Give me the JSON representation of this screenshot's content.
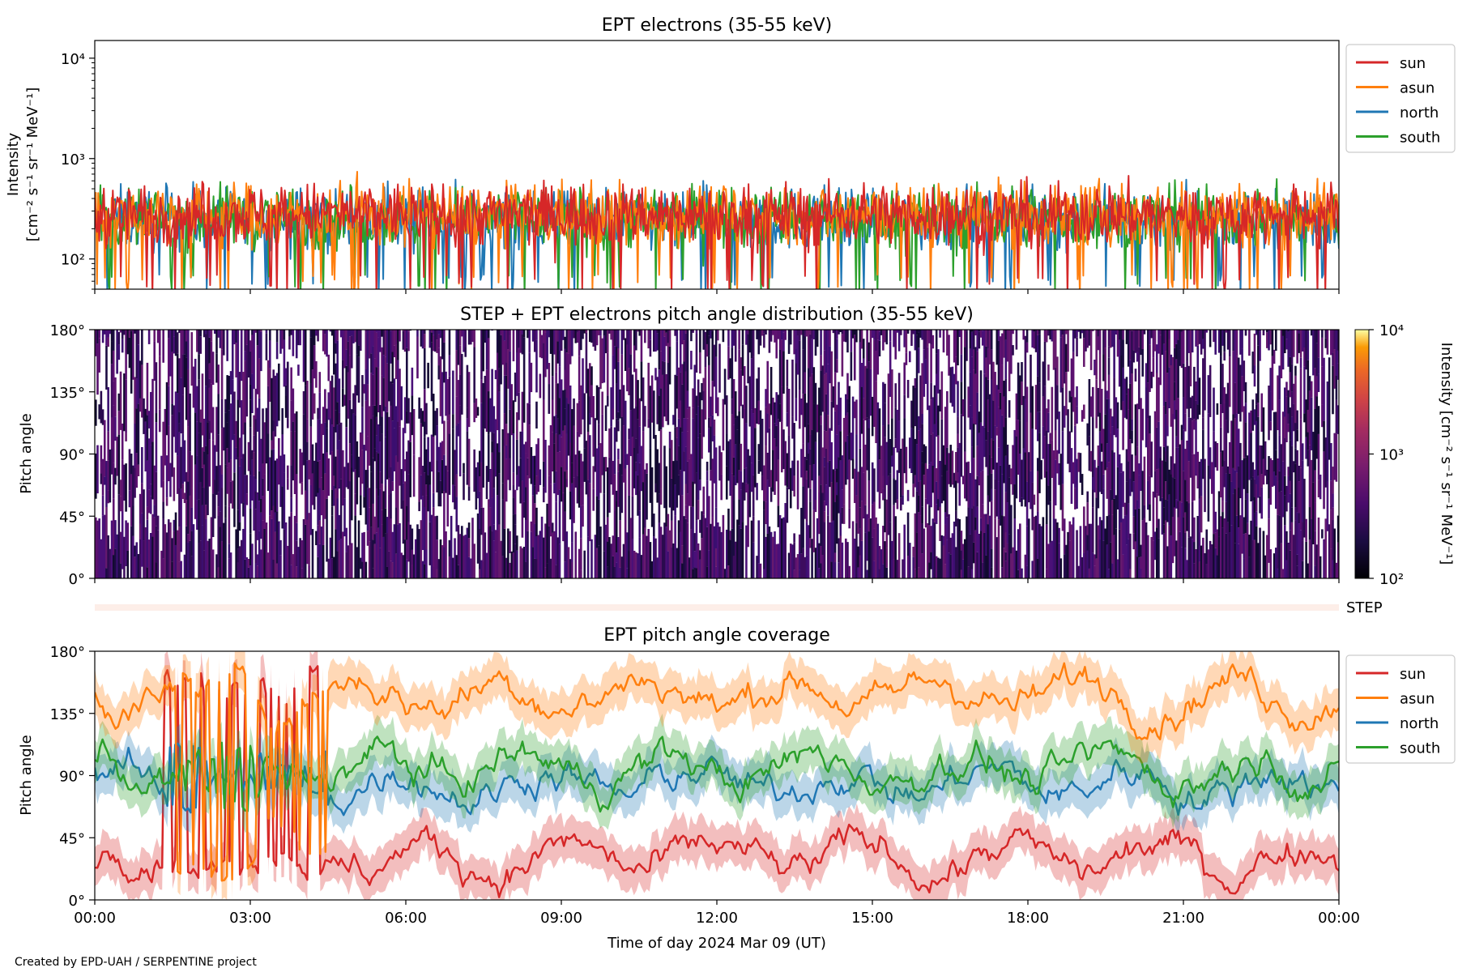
{
  "footer": "Created by EPD-UAH / SERPENTINE project",
  "xlabel": "Time of day 2024 Mar 09 (UT)",
  "x_ticks": [
    "00:00",
    "03:00",
    "06:00",
    "09:00",
    "12:00",
    "15:00",
    "18:00",
    "21:00",
    "00:00"
  ],
  "colors": {
    "sun": "#d62728",
    "asun": "#ff7f0e",
    "north": "#1f77b4",
    "south": "#2ca02c",
    "step_strip": "#fdeee8"
  },
  "panel1": {
    "title": "EPT electrons (35-55 keV)",
    "ylabel_line1": "Intensity",
    "ylabel_line2": "[cm⁻² s⁻¹ sr⁻¹ MeV⁻¹]",
    "yticks": [
      "10²",
      "10³",
      "10⁴"
    ],
    "legend": [
      "sun",
      "asun",
      "north",
      "south"
    ]
  },
  "panel2": {
    "title": "STEP + EPT electrons pitch angle distribution (35-55 keV)",
    "ylabel": "Pitch angle",
    "yticks": [
      "0°",
      "45°",
      "90°",
      "135°",
      "180°"
    ],
    "colorbar_label": "Intensity [cm⁻² s⁻¹ sr⁻¹ MeV⁻¹]",
    "colorbar_ticks": [
      "10²",
      "10³",
      "10⁴"
    ]
  },
  "step_label": "STEP",
  "panel3": {
    "title": "EPT pitch angle coverage",
    "ylabel": "Pitch angle",
    "yticks": [
      "0°",
      "45°",
      "90°",
      "135°",
      "180°"
    ],
    "legend": [
      "sun",
      "asun",
      "north",
      "south"
    ]
  },
  "chart_data": [
    {
      "type": "line",
      "title": "EPT electrons (35-55 keV)",
      "xlabel": "",
      "ylabel": "Intensity [cm⁻² s⁻¹ sr⁻¹ MeV⁻¹]",
      "x_range_hours": [
        0,
        24
      ],
      "y_scale": "log",
      "ylim": [
        50,
        15000
      ],
      "legend_position": "right",
      "series": [
        {
          "name": "sun",
          "typical": 280,
          "min": 50,
          "max": 1000
        },
        {
          "name": "asun",
          "typical": 280,
          "min": 50,
          "max": 900
        },
        {
          "name": "north",
          "typical": 250,
          "min": 50,
          "max": 800
        },
        {
          "name": "south",
          "typical": 260,
          "min": 50,
          "max": 1100
        }
      ]
    },
    {
      "type": "heatmap",
      "title": "STEP + EPT electrons pitch angle distribution (35-55 keV)",
      "ylabel": "Pitch angle",
      "x_range_hours": [
        0,
        24
      ],
      "ylim": [
        0,
        180
      ],
      "color_scale": "log",
      "color_range": [
        100,
        10000
      ],
      "colormap": "inferno"
    },
    {
      "type": "line",
      "title": "EPT pitch angle coverage",
      "xlabel": "Time of day 2024 Mar 09 (UT)",
      "ylabel": "Pitch angle",
      "x_range_hours": [
        0,
        24
      ],
      "ylim": [
        0,
        180
      ],
      "legend_position": "right",
      "series": [
        {
          "name": "sun",
          "typical_deg": 30
        },
        {
          "name": "asun",
          "typical_deg": 150
        },
        {
          "name": "north",
          "typical_deg": 85
        },
        {
          "name": "south",
          "typical_deg": 95
        }
      ]
    }
  ]
}
